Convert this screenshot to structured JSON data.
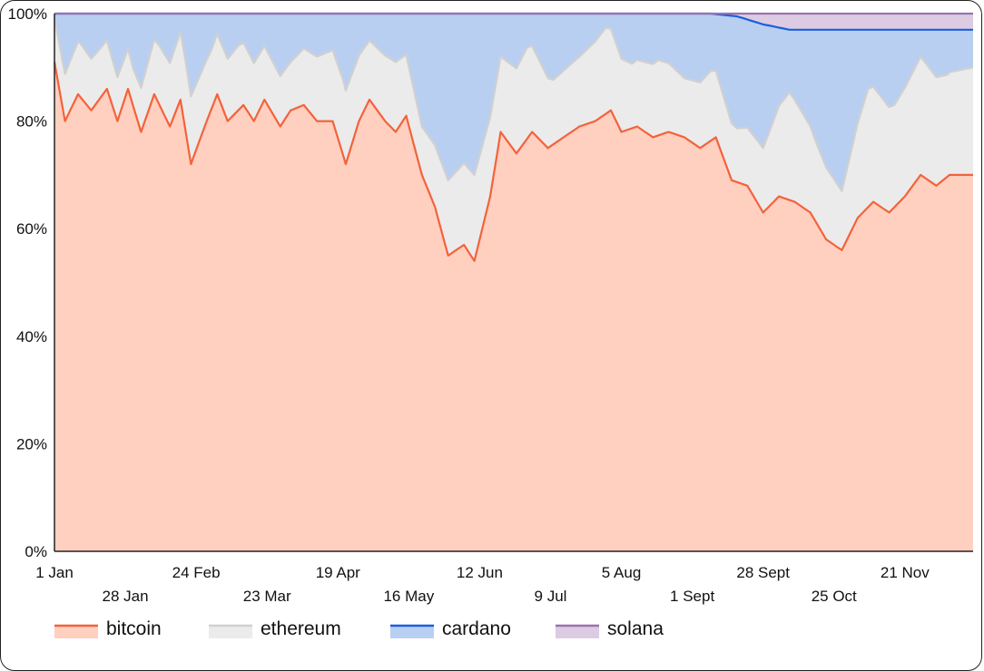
{
  "chart_data": {
    "type": "area",
    "stacked": true,
    "normalized_percent": true,
    "x_labels": [
      "1 Jan",
      "28 Jan",
      "24 Feb",
      "23 Mar",
      "19 Apr",
      "16 May",
      "12 Jun",
      "9 Jul",
      "5 Aug",
      "1 Sept",
      "28 Sept",
      "25 Oct",
      "21 Nov"
    ],
    "y_ticks": [
      "0%",
      "20%",
      "40%",
      "60%",
      "80%",
      "100%"
    ],
    "ylim": [
      0,
      100
    ],
    "legend_position": "bottom",
    "series": [
      {
        "name": "bitcoin",
        "color": "#f4623a",
        "fill": "#ffcfc0",
        "x": [
          0,
          4,
          9,
          14,
          20,
          24,
          28,
          33,
          38,
          44,
          48,
          52,
          58,
          62,
          66,
          72,
          76,
          80,
          86,
          90,
          95,
          100,
          106,
          111,
          116,
          120,
          126,
          130,
          134,
          140,
          145,
          150,
          156,
          160,
          166,
          170,
          176,
          182,
          188,
          194,
          200,
          206,
          212,
          216,
          222,
          228,
          234,
          240,
          246,
          252,
          258,
          264,
          270,
          276,
          282,
          288,
          294,
          300,
          306,
          312,
          318,
          324,
          330,
          336,
          341,
          346,
          350
        ],
        "y": [
          91,
          80,
          85,
          82,
          86,
          80,
          86,
          78,
          85,
          79,
          84,
          72,
          80,
          85,
          80,
          83,
          80,
          84,
          79,
          82,
          83,
          80,
          80,
          72,
          80,
          84,
          80,
          78,
          81,
          70,
          64,
          55,
          57,
          54,
          66,
          78,
          74,
          78,
          75,
          77,
          79,
          80,
          82,
          78,
          79,
          77,
          78,
          77,
          75,
          77,
          69,
          68,
          63,
          66,
          65,
          63,
          58,
          56,
          62,
          65,
          63,
          66,
          70,
          68,
          70,
          70,
          70
        ],
        "hover_values_shown": false
      },
      {
        "name": "ethereum",
        "color": "#d0d0d0",
        "fill": "#ebebeb",
        "x": [
          0,
          10,
          20,
          30,
          40,
          50,
          60,
          70,
          80,
          90,
          100,
          110,
          120,
          130,
          140,
          150,
          160,
          170,
          180,
          190,
          200,
          210,
          220,
          230,
          240,
          250,
          260,
          270,
          280,
          290,
          300,
          310,
          320,
          330,
          340,
          350
        ],
        "y": [
          8,
          10,
          9,
          7,
          11,
          13,
          11,
          12,
          10,
          9,
          12,
          14,
          11,
          13,
          9,
          14,
          16,
          14,
          17,
          12,
          13,
          16,
          12,
          14,
          11,
          13,
          10,
          12,
          20,
          15,
          11,
          22,
          19,
          22,
          19,
          20
        ]
      },
      {
        "name": "cardano",
        "color": "#1a5fdb",
        "fill": "#b9cff1",
        "x": [
          0,
          20,
          40,
          60,
          80,
          100,
          120,
          140,
          160,
          180,
          200,
          220,
          240,
          250,
          260,
          270,
          280,
          290,
          300,
          310,
          320,
          330,
          340,
          350
        ],
        "y": [
          0.5,
          0.5,
          1,
          2,
          2,
          1.5,
          1,
          1.5,
          2,
          1,
          1,
          1.5,
          2,
          4,
          8,
          12,
          11,
          10,
          10,
          8,
          7,
          7,
          6,
          6
        ]
      },
      {
        "name": "solana",
        "color": "#9b72b0",
        "fill": "#dccbe3",
        "x": [
          0,
          240,
          250,
          260,
          270,
          280,
          290,
          300,
          310,
          320,
          330,
          340,
          350
        ],
        "y": [
          0,
          0,
          0,
          0.5,
          2,
          3,
          3,
          3,
          3,
          3,
          3,
          3,
          3
        ]
      }
    ]
  }
}
